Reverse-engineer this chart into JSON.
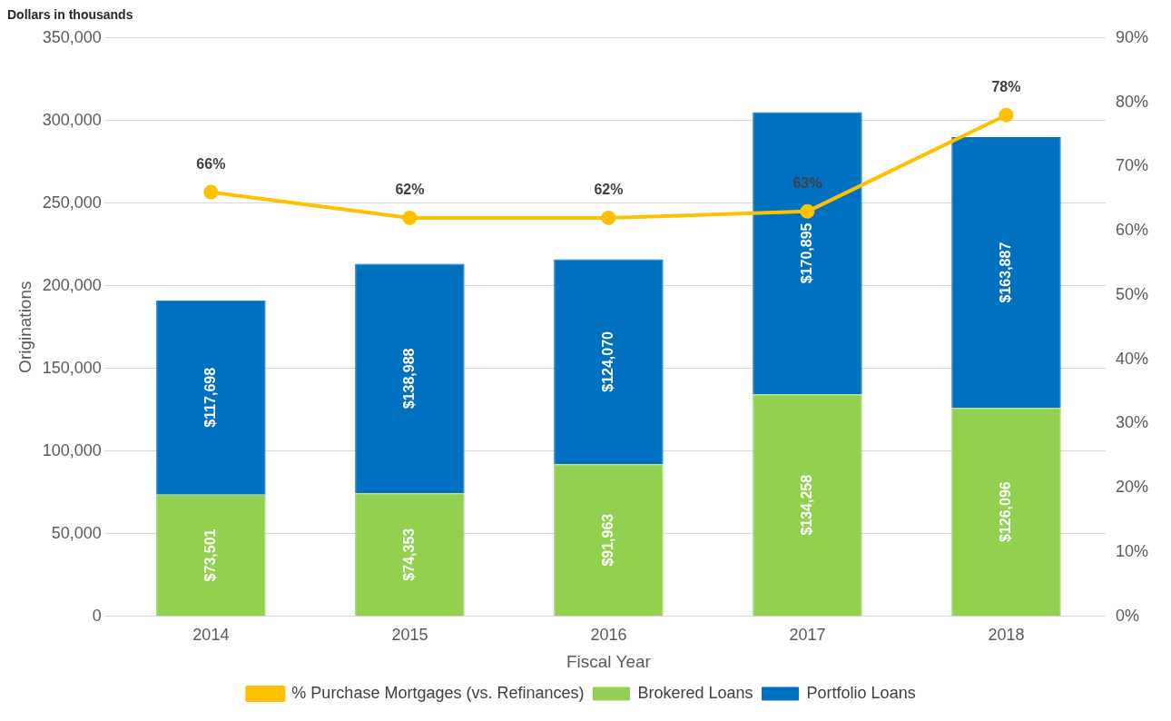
{
  "chart_data": {
    "type": "bar",
    "stacked": true,
    "xlabel": "Fiscal Year",
    "ylabel": "Originations",
    "annotations": [
      "Dollars in thousands"
    ],
    "categories": [
      "2014",
      "2015",
      "2016",
      "2017",
      "2018"
    ],
    "series": [
      {
        "name": "Brokered Loans",
        "color": "#92d050",
        "values": [
          73501,
          74353,
          91963,
          134258,
          126096
        ],
        "value_labels": [
          "$73,501",
          "$74,353",
          "$91,963",
          "$134,258",
          "$126,096"
        ]
      },
      {
        "name": "Portfolio Loans",
        "color": "#0070c0",
        "values": [
          117698,
          138988,
          124070,
          170895,
          163887
        ],
        "value_labels": [
          "$117,698",
          "$138,988",
          "$124,070",
          "$170,895",
          "$163,887"
        ]
      },
      {
        "name": "% Purchase Mortgages (vs. Refinances)",
        "type": "line",
        "axis": "y2",
        "color": "#ffc000",
        "values": [
          66,
          62,
          62,
          63,
          78
        ],
        "value_labels": [
          "66%",
          "62%",
          "62%",
          "63%",
          "78%"
        ]
      }
    ],
    "ylim": [
      0,
      350000
    ],
    "yticks": [
      {
        "value": 0,
        "label": "0"
      },
      {
        "value": 50000,
        "label": "50,000"
      },
      {
        "value": 100000,
        "label": "100,000"
      },
      {
        "value": 150000,
        "label": "150,000"
      },
      {
        "value": 200000,
        "label": "200,000"
      },
      {
        "value": 250000,
        "label": "250,000"
      },
      {
        "value": 300000,
        "label": "300,000"
      },
      {
        "value": 350000,
        "label": "350,000"
      }
    ],
    "y2lim": [
      0,
      90
    ],
    "y2ticks": [
      {
        "value": 0,
        "label": "0%"
      },
      {
        "value": 10,
        "label": "10%"
      },
      {
        "value": 20,
        "label": "20%"
      },
      {
        "value": 30,
        "label": "30%"
      },
      {
        "value": 40,
        "label": "40%"
      },
      {
        "value": 50,
        "label": "50%"
      },
      {
        "value": 60,
        "label": "60%"
      },
      {
        "value": 70,
        "label": "70%"
      },
      {
        "value": 80,
        "label": "80%"
      },
      {
        "value": 90,
        "label": "90%"
      }
    ],
    "grid": "y",
    "legend": "bottom",
    "marker": "circle",
    "line_style": "solid"
  }
}
